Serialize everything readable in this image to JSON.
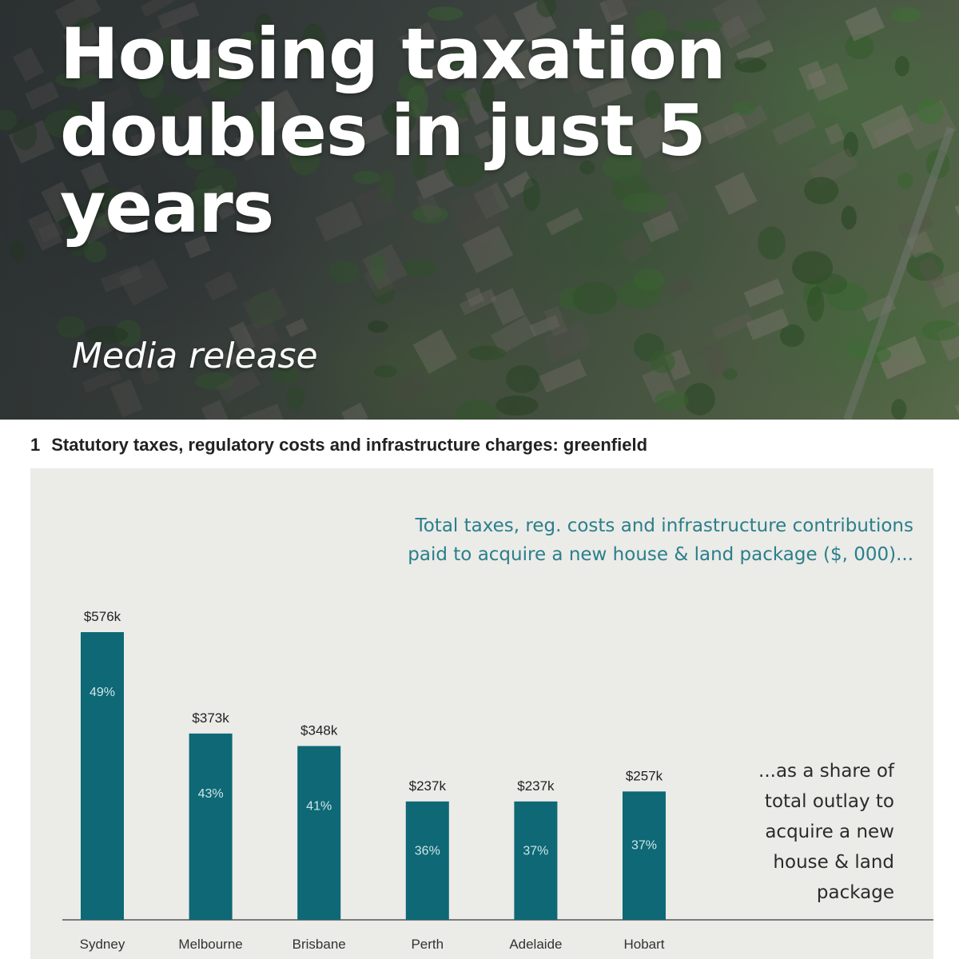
{
  "hero": {
    "title": "Housing taxation doubles in just 5 years",
    "subtitle": "Media release"
  },
  "figure": {
    "number": "1",
    "heading": "Statutory taxes, regulatory costs and infrastructure charges: greenfield",
    "annotation_top": [
      "Total taxes, reg. costs and infrastructure contributions",
      "paid to acquire a new house & land package ($, 000)..."
    ],
    "annotation_right": [
      "...as a share of",
      "total outlay to",
      "acquire a new",
      "house & land",
      "package"
    ]
  },
  "chart_data": {
    "type": "bar",
    "categories": [
      "Sydney",
      "Melbourne",
      "Brisbane",
      "Perth",
      "Adelaide",
      "Hobart"
    ],
    "values": [
      576,
      373,
      348,
      237,
      237,
      257
    ],
    "value_labels": [
      "$576k",
      "$373k",
      "$348k",
      "$237k",
      "$237k",
      "$257k"
    ],
    "share_labels": [
      "49%",
      "43%",
      "41%",
      "36%",
      "37%",
      "37%"
    ],
    "unit": "$, 000",
    "ylim": [
      0,
      576
    ],
    "grid": false,
    "colors": {
      "bar": "#0e6875",
      "bar_text": "#cfe6e9",
      "panel": "#ebebe8",
      "annotation": "#2a7f8a"
    }
  }
}
